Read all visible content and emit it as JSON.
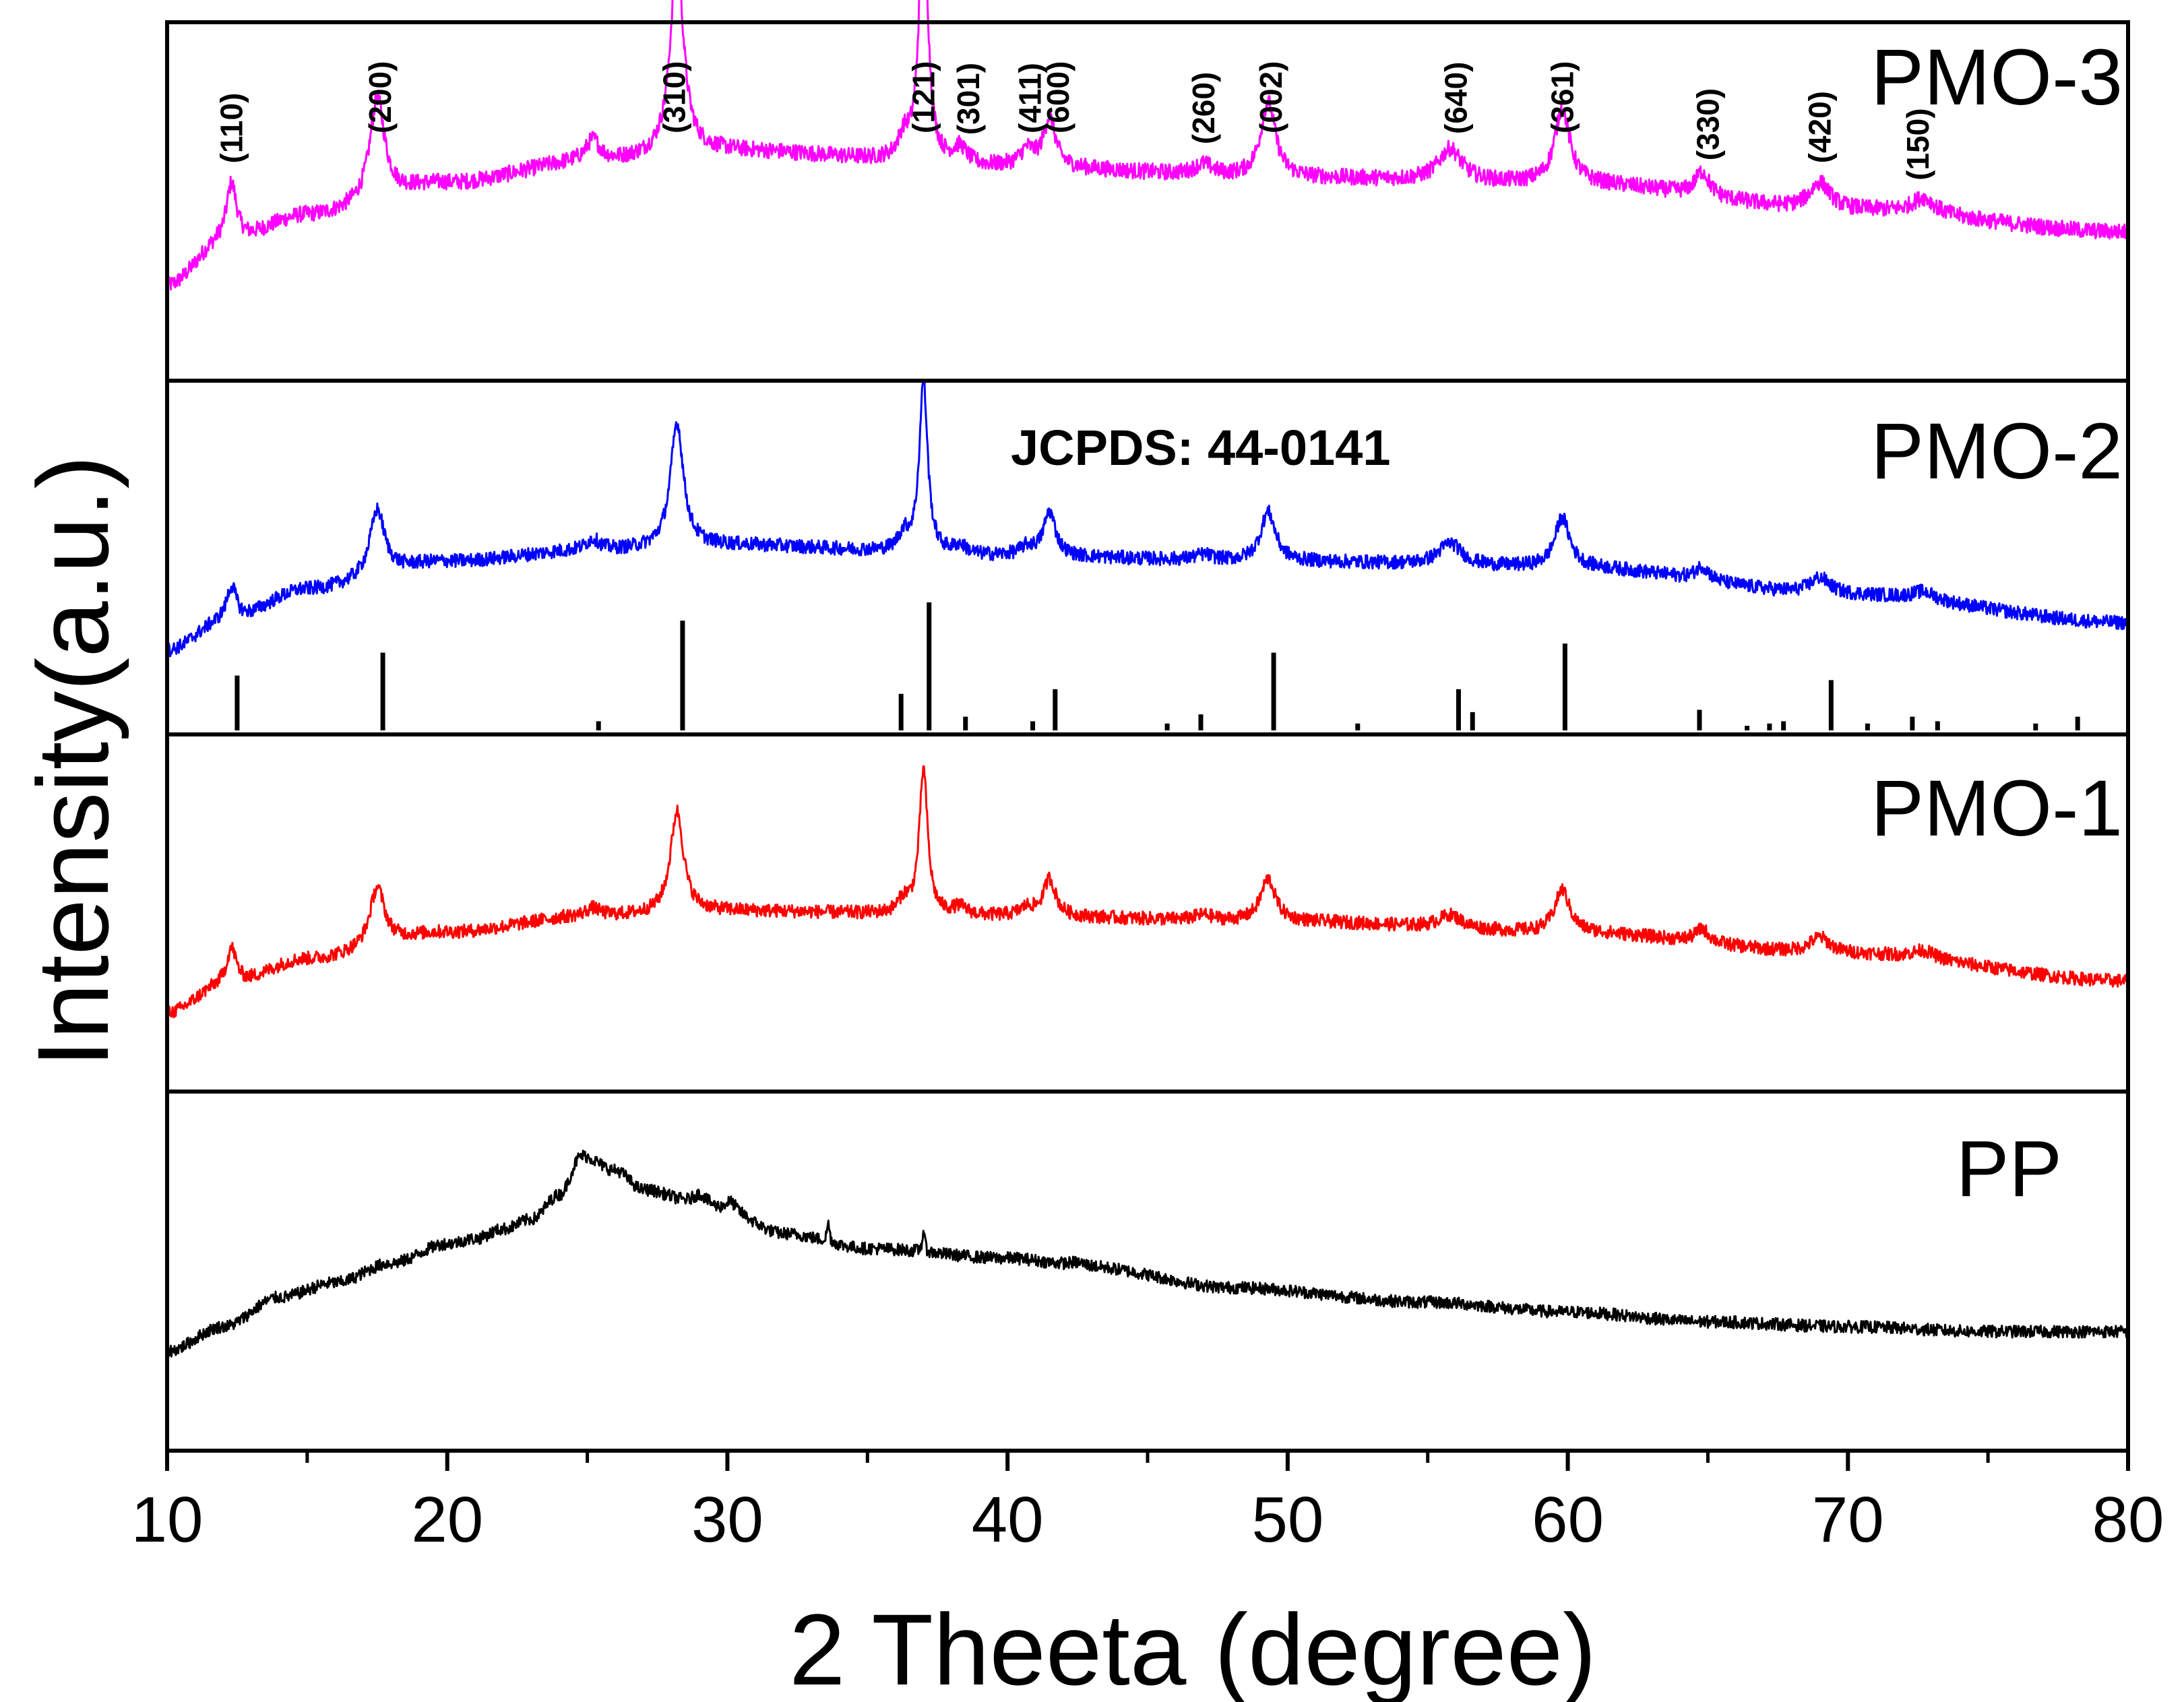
{
  "chart_data": {
    "type": "line",
    "title": "",
    "xlabel": "2 Theeta (degree)",
    "ylabel": "Intensity(a.u.)",
    "xlim": [
      10,
      80
    ],
    "xticks": [
      10,
      20,
      30,
      40,
      50,
      60,
      70,
      80
    ],
    "xtick_labels": [
      "10",
      "20",
      "30",
      "40",
      "50",
      "60",
      "70",
      "80"
    ],
    "panels": [
      {
        "id": "pmo3",
        "name": "PMO-3",
        "color": "#ff00ff",
        "ylim": [
          0,
          100
        ],
        "baseline": [
          [
            10,
            14
          ],
          [
            12,
            30
          ],
          [
            15,
            40
          ],
          [
            20,
            52
          ],
          [
            25,
            60
          ],
          [
            30,
            64
          ],
          [
            40,
            58
          ],
          [
            50,
            54
          ],
          [
            60,
            52
          ],
          [
            70,
            42
          ],
          [
            80,
            34
          ]
        ],
        "peaks": [
          [
            12.3,
            22,
            0.22
          ],
          [
            17.5,
            38,
            0.32
          ],
          [
            25.2,
            8,
            0.3
          ],
          [
            28.2,
            74,
            0.28
          ],
          [
            36.3,
            8,
            0.25
          ],
          [
            37.0,
            100,
            0.18
          ],
          [
            38.3,
            6,
            0.3
          ],
          [
            40.7,
            6,
            0.3
          ],
          [
            41.5,
            18,
            0.26
          ],
          [
            47.0,
            4,
            0.4
          ],
          [
            49.3,
            28,
            0.32
          ],
          [
            55.8,
            12,
            0.5
          ],
          [
            59.8,
            28,
            0.32
          ],
          [
            64.8,
            9,
            0.3
          ],
          [
            69.0,
            10,
            0.45
          ],
          [
            72.7,
            6,
            0.5
          ]
        ],
        "noise": 3.0,
        "hkl_labels": [
          {
            "text": "(110)",
            "x": 12.3
          },
          {
            "text": "(200)",
            "x": 17.6
          },
          {
            "text": "(310)",
            "x": 28.1
          },
          {
            "text": "(121)",
            "x": 37.0
          },
          {
            "text": "(301)",
            "x": 38.6
          },
          {
            "text": "(411)",
            "x": 40.8
          },
          {
            "text": "(600)",
            "x": 41.8
          },
          {
            "text": "(260)",
            "x": 47.0
          },
          {
            "text": "(002)",
            "x": 49.4
          },
          {
            "text": "(640)",
            "x": 56.0
          },
          {
            "text": "(361)",
            "x": 59.8
          },
          {
            "text": "(330)",
            "x": 65.0
          },
          {
            "text": "(420)",
            "x": 69.0
          },
          {
            "text": "(150)",
            "x": 72.5
          }
        ]
      },
      {
        "id": "pmo2",
        "name": "PMO-2",
        "color": "#0000ff",
        "ylim": [
          0,
          100
        ],
        "baseline": [
          [
            10,
            10
          ],
          [
            12,
            20
          ],
          [
            15,
            32
          ],
          [
            20,
            42
          ],
          [
            25,
            46
          ],
          [
            30,
            48
          ],
          [
            40,
            44
          ],
          [
            50,
            42
          ],
          [
            60,
            40
          ],
          [
            70,
            30
          ],
          [
            80,
            20
          ]
        ],
        "peaks": [
          [
            12.3,
            13,
            0.22
          ],
          [
            17.5,
            24,
            0.32
          ],
          [
            25.2,
            4,
            0.3
          ],
          [
            28.2,
            45,
            0.28
          ],
          [
            36.3,
            6,
            0.25
          ],
          [
            37.0,
            62,
            0.18
          ],
          [
            38.3,
            3,
            0.3
          ],
          [
            40.7,
            3,
            0.3
          ],
          [
            41.5,
            16,
            0.26
          ],
          [
            47.0,
            2,
            0.4
          ],
          [
            49.3,
            18,
            0.32
          ],
          [
            55.8,
            8,
            0.5
          ],
          [
            59.8,
            18,
            0.32
          ],
          [
            64.8,
            5,
            0.3
          ],
          [
            69.0,
            6,
            0.45
          ],
          [
            72.7,
            3,
            0.5
          ]
        ],
        "noise": 2.5,
        "reference_label": "JCPDS: 44-0141",
        "reference_peaks": [
          [
            12.5,
            24
          ],
          [
            17.7,
            34
          ],
          [
            25.4,
            4
          ],
          [
            28.4,
            48
          ],
          [
            36.2,
            16
          ],
          [
            37.2,
            56
          ],
          [
            38.5,
            6
          ],
          [
            40.9,
            4
          ],
          [
            41.7,
            18
          ],
          [
            45.7,
            3
          ],
          [
            46.9,
            7
          ],
          [
            49.5,
            34
          ],
          [
            52.5,
            3
          ],
          [
            56.1,
            18
          ],
          [
            56.6,
            8
          ],
          [
            59.9,
            38
          ],
          [
            64.7,
            9
          ],
          [
            66.4,
            2
          ],
          [
            67.2,
            3
          ],
          [
            67.7,
            4
          ],
          [
            69.4,
            22
          ],
          [
            70.7,
            3
          ],
          [
            72.3,
            6
          ],
          [
            73.2,
            4
          ],
          [
            76.7,
            3
          ],
          [
            78.2,
            6
          ]
        ]
      },
      {
        "id": "pmo1",
        "name": "PMO-1",
        "color": "#ff0000",
        "ylim": [
          0,
          100
        ],
        "baseline": [
          [
            10,
            8
          ],
          [
            12,
            18
          ],
          [
            15,
            28
          ],
          [
            20,
            38
          ],
          [
            25,
            44
          ],
          [
            30,
            46
          ],
          [
            40,
            44
          ],
          [
            50,
            42
          ],
          [
            60,
            38
          ],
          [
            70,
            30
          ],
          [
            80,
            20
          ]
        ],
        "peaks": [
          [
            12.3,
            14,
            0.22
          ],
          [
            17.5,
            22,
            0.32
          ],
          [
            25.2,
            3,
            0.3
          ],
          [
            28.2,
            38,
            0.28
          ],
          [
            36.3,
            5,
            0.25
          ],
          [
            37.0,
            54,
            0.18
          ],
          [
            38.3,
            3,
            0.3
          ],
          [
            40.7,
            3,
            0.3
          ],
          [
            41.5,
            14,
            0.26
          ],
          [
            47.0,
            2,
            0.4
          ],
          [
            49.3,
            16,
            0.32
          ],
          [
            55.8,
            5,
            0.5
          ],
          [
            59.8,
            16,
            0.32
          ],
          [
            64.8,
            5,
            0.3
          ],
          [
            69.0,
            6,
            0.45
          ],
          [
            72.7,
            3,
            0.5
          ]
        ],
        "noise": 2.5
      },
      {
        "id": "pp",
        "name": "PP",
        "color": "#000000",
        "ylim": [
          0,
          100
        ],
        "baseline": [
          [
            10,
            4
          ],
          [
            12,
            14
          ],
          [
            14,
            26
          ],
          [
            16,
            32
          ],
          [
            18,
            40
          ],
          [
            20,
            48
          ],
          [
            21,
            50
          ],
          [
            22,
            54
          ],
          [
            23,
            58
          ],
          [
            24,
            68
          ],
          [
            24.8,
            84
          ],
          [
            26,
            78
          ],
          [
            27,
            70
          ],
          [
            29,
            64
          ],
          [
            30,
            60
          ],
          [
            32,
            52
          ],
          [
            35,
            46
          ],
          [
            40,
            42
          ],
          [
            43,
            38
          ],
          [
            48,
            30
          ],
          [
            55,
            24
          ],
          [
            60,
            20
          ],
          [
            65,
            16
          ],
          [
            70,
            14
          ],
          [
            75,
            12
          ],
          [
            80,
            12
          ]
        ],
        "peaks": [
          [
            29.0,
            4,
            0.3
          ],
          [
            30.1,
            5,
            0.3
          ],
          [
            33.6,
            8,
            0.05
          ],
          [
            37.0,
            9,
            0.05
          ],
          [
            42.5,
            2,
            0.5
          ]
        ],
        "noise": 2.5
      }
    ]
  }
}
